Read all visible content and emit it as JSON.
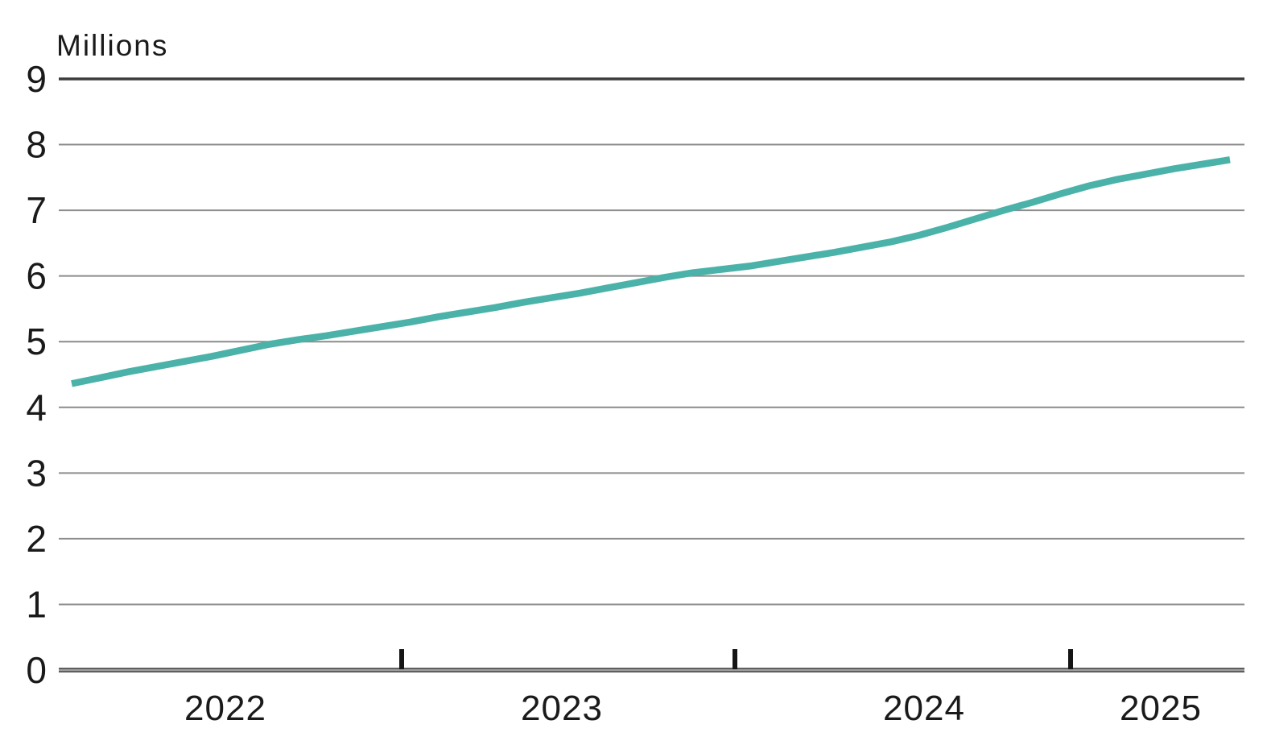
{
  "chart_data": {
    "type": "line",
    "title": "",
    "unit_label": "Millions",
    "xlabel": "",
    "ylabel": "Millions",
    "ylim": [
      0,
      9
    ],
    "y_ticks": [
      0,
      1,
      2,
      3,
      4,
      5,
      6,
      7,
      8,
      9
    ],
    "x_tick_labels": [
      "2022",
      "2023",
      "2024",
      "2025"
    ],
    "grid": true,
    "legend_position": "none",
    "x_step": "month",
    "x_range": [
      "2022-01",
      "2025-06"
    ],
    "series": [
      {
        "name": "value-millions",
        "color": "#4ab2a8",
        "x": [
          "2022-01",
          "2022-02",
          "2022-03",
          "2022-04",
          "2022-05",
          "2022-06",
          "2022-07",
          "2022-08",
          "2022-09",
          "2022-10",
          "2022-11",
          "2022-12",
          "2023-01",
          "2023-02",
          "2023-03",
          "2023-04",
          "2023-05",
          "2023-06",
          "2023-07",
          "2023-08",
          "2023-09",
          "2023-10",
          "2023-11",
          "2023-12",
          "2024-01",
          "2024-02",
          "2024-03",
          "2024-04",
          "2024-05",
          "2024-06",
          "2024-07",
          "2024-08",
          "2024-09",
          "2024-10",
          "2024-11",
          "2024-12",
          "2025-01",
          "2025-02",
          "2025-03",
          "2025-04",
          "2025-05",
          "2025-06"
        ],
        "values": [
          4.36,
          4.45,
          4.54,
          4.62,
          4.7,
          4.78,
          4.87,
          4.96,
          5.03,
          5.09,
          5.16,
          5.23,
          5.3,
          5.38,
          5.45,
          5.52,
          5.6,
          5.67,
          5.74,
          5.82,
          5.9,
          5.98,
          6.05,
          6.1,
          6.15,
          6.22,
          6.29,
          6.36,
          6.44,
          6.52,
          6.62,
          6.74,
          6.87,
          7.0,
          7.12,
          7.25,
          7.37,
          7.47,
          7.55,
          7.63,
          7.7,
          7.77
        ]
      }
    ],
    "colors": {
      "background": "#ffffff",
      "line": "#4ab2a8",
      "gridline": "#8c8c8c",
      "top_gridline": "#3c3c3c",
      "baseline_dark": "#5f5f5f",
      "baseline_light": "#9e9e9e",
      "tick_mark": "#151515",
      "text": "#1a1a1a"
    }
  }
}
